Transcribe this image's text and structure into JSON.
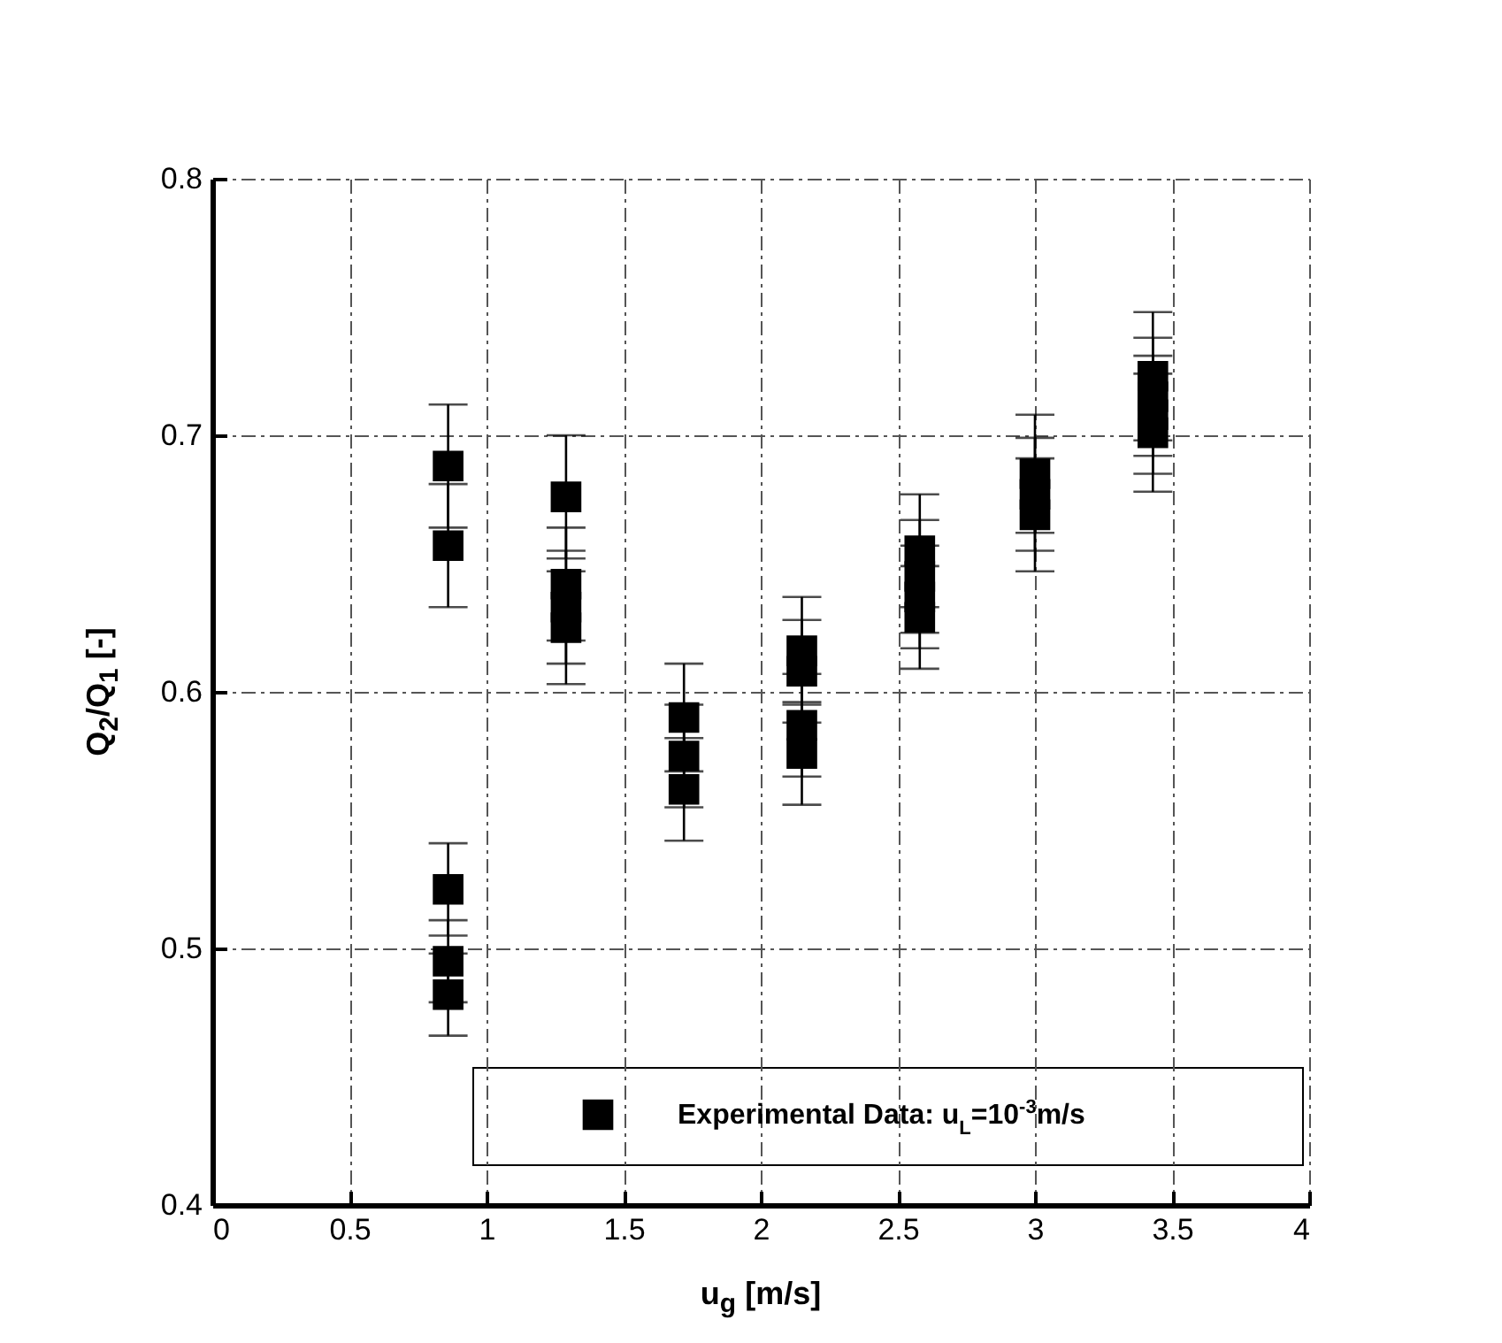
{
  "chart_data": {
    "type": "scatter",
    "xlabel": "u$_{g}$ [m/s]",
    "ylabel": "Q$_{2}$/Q$_{1}$ [-]",
    "xlim": [
      0,
      4
    ],
    "ylim": [
      0.4,
      0.8
    ],
    "xticks": [
      0,
      0.5,
      1,
      1.5,
      2,
      2.5,
      3,
      3.5,
      4
    ],
    "yticks": [
      0.4,
      0.5,
      0.6,
      0.7,
      0.8
    ],
    "grid": true,
    "legend": "bottom right",
    "marker": "square",
    "series": [
      {
        "name": "Experimental Data: u$_{L}$=10$^{-3}$m/s",
        "color": "#000000",
        "x": [
          0.86,
          0.86,
          0.86,
          0.86,
          0.86,
          1.29,
          1.29,
          1.29,
          1.29,
          1.72,
          1.72,
          1.72,
          2.15,
          2.15,
          2.15,
          2.15,
          2.58,
          2.58,
          2.58,
          2.58,
          3.0,
          3.0,
          3.0,
          3.43,
          3.43,
          3.43,
          3.43
        ],
        "values": [
          0.688,
          0.657,
          0.523,
          0.495,
          0.482,
          0.676,
          0.642,
          0.633,
          0.625,
          0.59,
          0.575,
          0.562,
          0.616,
          0.608,
          0.587,
          0.576,
          0.655,
          0.645,
          0.637,
          0.629,
          0.685,
          0.677,
          0.669,
          0.723,
          0.715,
          0.708,
          0.701
        ],
        "errors": [
          0.024,
          0.024,
          0.018,
          0.016,
          0.016,
          0.024,
          0.022,
          0.022,
          0.022,
          0.021,
          0.02,
          0.02,
          0.021,
          0.02,
          0.02,
          0.02,
          0.022,
          0.022,
          0.02,
          0.02,
          0.023,
          0.022,
          0.022,
          0.025,
          0.023,
          0.023,
          0.023
        ]
      }
    ]
  }
}
